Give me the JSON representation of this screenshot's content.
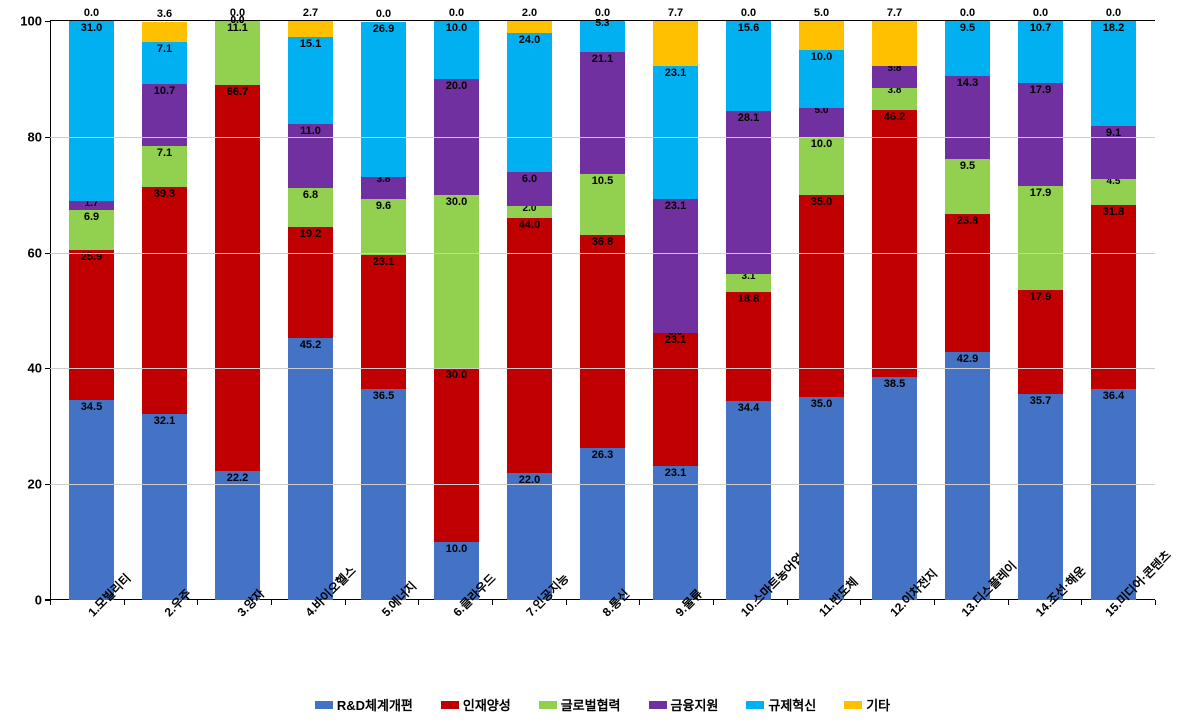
{
  "chart": {
    "type": "stacked-bar",
    "ylim": [
      0,
      100
    ],
    "ytick_step": 20,
    "yticks": [
      0,
      20,
      40,
      60,
      80,
      100
    ],
    "background_color": "#ffffff",
    "grid_color": "#cccccc",
    "axis_color": "#000000",
    "label_fontsize": 11,
    "axis_fontsize": 13,
    "legend_fontsize": 13,
    "bar_width_ratio": 0.62,
    "categories": [
      "1.모빌리티",
      "2.우주",
      "3.양자",
      "4.바이오헬스",
      "5.에너지",
      "6.클라우드",
      "7.인공지능",
      "8.통신",
      "9.물류",
      "10.스마트농어업",
      "11.반도체",
      "12.이차전지",
      "13.디스플레이",
      "14.조선·해운",
      "15.미디어·콘텐츠"
    ],
    "series": [
      {
        "name": "R&D체계개편",
        "color": "#4472c4"
      },
      {
        "name": "인재양성",
        "color": "#c00000"
      },
      {
        "name": "글로벌협력",
        "color": "#92d050"
      },
      {
        "name": "금융지원",
        "color": "#7030a0"
      },
      {
        "name": "규제혁신",
        "color": "#00b0f0"
      },
      {
        "name": "기타",
        "color": "#ffc000"
      }
    ],
    "data": [
      {
        "values": [
          34.5,
          25.9,
          6.9,
          1.7,
          31.0,
          0.0
        ]
      },
      {
        "values": [
          32.1,
          39.3,
          7.1,
          10.7,
          7.1,
          3.6
        ]
      },
      {
        "values": [
          22.2,
          66.7,
          11.1,
          0.0,
          0.0,
          0.0
        ]
      },
      {
        "values": [
          45.2,
          19.2,
          6.8,
          11.0,
          15.1,
          2.7
        ]
      },
      {
        "values": [
          36.5,
          23.1,
          9.6,
          3.8,
          26.9,
          0.0
        ]
      },
      {
        "values": [
          10.0,
          30.0,
          30.0,
          20.0,
          10.0,
          0.0
        ]
      },
      {
        "values": [
          22.0,
          44.0,
          2.0,
          6.0,
          24.0,
          2.0
        ]
      },
      {
        "values": [
          26.3,
          36.8,
          10.5,
          21.1,
          5.3,
          0.0
        ]
      },
      {
        "values": [
          23.1,
          23.1,
          0.0,
          23.1,
          23.1,
          7.7
        ]
      },
      {
        "values": [
          34.4,
          18.8,
          3.1,
          28.1,
          15.6,
          0.0
        ]
      },
      {
        "values": [
          35.0,
          35.0,
          10.0,
          5.0,
          10.0,
          5.0
        ]
      },
      {
        "values": [
          38.5,
          46.2,
          3.8,
          3.8,
          0.0,
          7.7
        ]
      },
      {
        "values": [
          42.9,
          23.8,
          9.5,
          14.3,
          9.5,
          0.0
        ]
      },
      {
        "values": [
          35.7,
          17.9,
          17.9,
          17.9,
          10.7,
          0.0
        ]
      },
      {
        "values": [
          36.4,
          31.8,
          4.5,
          9.1,
          18.2,
          0.0
        ]
      }
    ]
  }
}
